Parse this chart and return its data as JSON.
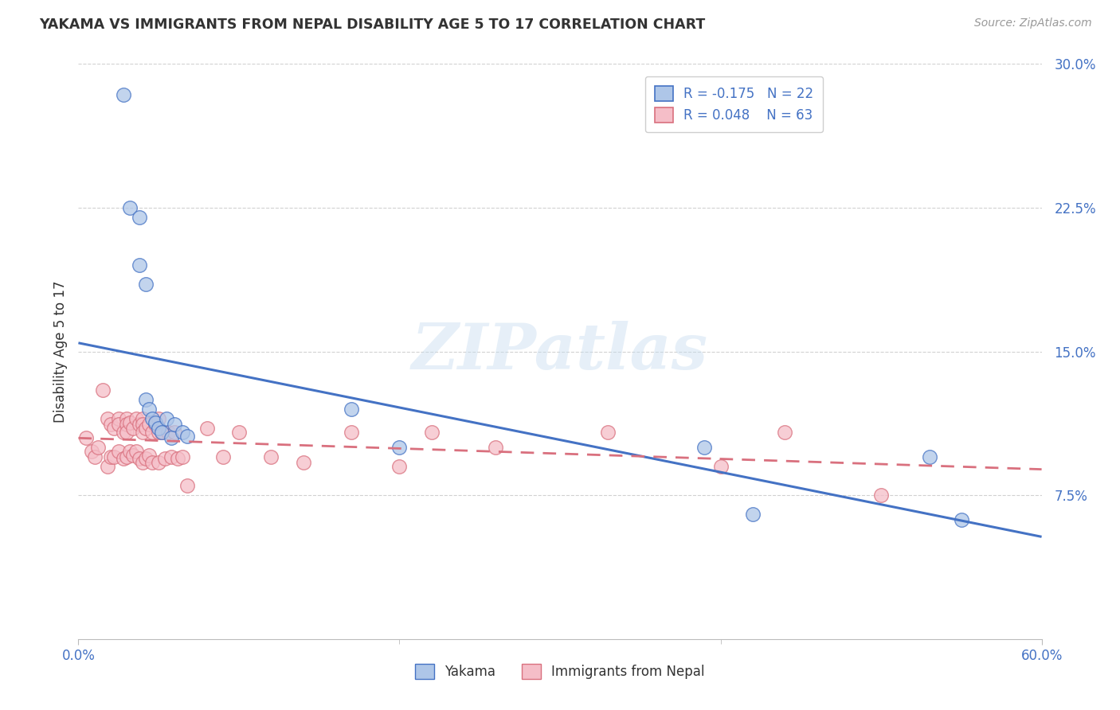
{
  "title": "YAKAMA VS IMMIGRANTS FROM NEPAL DISABILITY AGE 5 TO 17 CORRELATION CHART",
  "source": "Source: ZipAtlas.com",
  "ylabel": "Disability Age 5 to 17",
  "yakama_label": "Yakama",
  "nepal_label": "Immigrants from Nepal",
  "R_yakama": -0.175,
  "N_yakama": 22,
  "R_nepal": 0.048,
  "N_nepal": 63,
  "x_min": 0.0,
  "x_max": 0.6,
  "y_min": 0.0,
  "y_max": 0.3,
  "y_ticks": [
    0.075,
    0.15,
    0.225,
    0.3
  ],
  "y_tick_labels": [
    "7.5%",
    "15.0%",
    "22.5%",
    "30.0%"
  ],
  "color_yakama_fill": "#aec6e8",
  "color_nepal_fill": "#f5bec8",
  "color_yakama_line": "#4472c4",
  "color_nepal_line": "#d9707e",
  "watermark_text": "ZIPatlas",
  "background_color": "#ffffff",
  "yakama_x": [
    0.028,
    0.032,
    0.038,
    0.038,
    0.042,
    0.042,
    0.044,
    0.046,
    0.048,
    0.05,
    0.052,
    0.055,
    0.058,
    0.06,
    0.065,
    0.068,
    0.17,
    0.2,
    0.39,
    0.42,
    0.53,
    0.55
  ],
  "yakama_y": [
    0.284,
    0.225,
    0.22,
    0.195,
    0.185,
    0.125,
    0.12,
    0.115,
    0.113,
    0.11,
    0.108,
    0.115,
    0.105,
    0.112,
    0.108,
    0.106,
    0.12,
    0.1,
    0.1,
    0.065,
    0.095,
    0.062
  ],
  "nepal_x": [
    0.005,
    0.008,
    0.01,
    0.012,
    0.015,
    0.018,
    0.018,
    0.02,
    0.02,
    0.022,
    0.022,
    0.025,
    0.025,
    0.025,
    0.028,
    0.028,
    0.03,
    0.03,
    0.03,
    0.03,
    0.032,
    0.032,
    0.034,
    0.034,
    0.036,
    0.036,
    0.038,
    0.038,
    0.04,
    0.04,
    0.04,
    0.04,
    0.042,
    0.042,
    0.044,
    0.044,
    0.046,
    0.046,
    0.048,
    0.05,
    0.05,
    0.05,
    0.052,
    0.054,
    0.056,
    0.058,
    0.06,
    0.062,
    0.065,
    0.068,
    0.08,
    0.09,
    0.1,
    0.12,
    0.14,
    0.17,
    0.2,
    0.22,
    0.26,
    0.33,
    0.4,
    0.44,
    0.5
  ],
  "nepal_y": [
    0.105,
    0.098,
    0.095,
    0.1,
    0.13,
    0.115,
    0.09,
    0.112,
    0.095,
    0.11,
    0.095,
    0.115,
    0.112,
    0.098,
    0.108,
    0.094,
    0.115,
    0.112,
    0.108,
    0.095,
    0.113,
    0.098,
    0.11,
    0.096,
    0.115,
    0.098,
    0.112,
    0.094,
    0.115,
    0.112,
    0.108,
    0.092,
    0.11,
    0.094,
    0.112,
    0.096,
    0.108,
    0.092,
    0.112,
    0.115,
    0.108,
    0.092,
    0.108,
    0.094,
    0.108,
    0.095,
    0.108,
    0.094,
    0.095,
    0.08,
    0.11,
    0.095,
    0.108,
    0.095,
    0.092,
    0.108,
    0.09,
    0.108,
    0.1,
    0.108,
    0.09,
    0.108,
    0.075
  ]
}
